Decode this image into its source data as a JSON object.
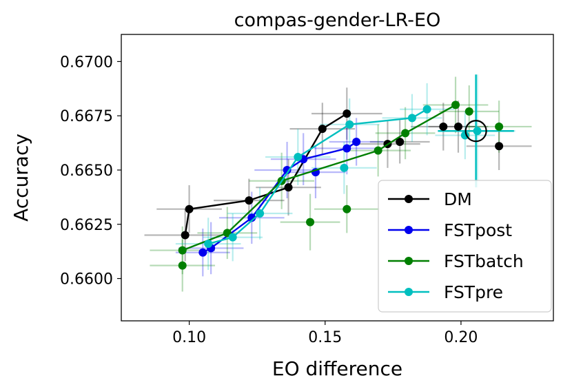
{
  "chart_data": {
    "type": "line",
    "title": "compas-gender-LR-EO",
    "xlabel": "EO difference",
    "ylabel": "Accuracy",
    "xlim": [
      0.075,
      0.234
    ],
    "ylim": [
      0.65805,
      0.67125
    ],
    "xticks": [
      0.1,
      0.15,
      0.2
    ],
    "xtick_labels": [
      "0.10",
      "0.15",
      "0.20"
    ],
    "yticks": [
      0.66,
      0.6625,
      0.665,
      0.6675,
      0.67
    ],
    "ytick_labels": [
      "0.6600",
      "0.6625",
      "0.6650",
      "0.6675",
      "0.6700"
    ],
    "legend_position": "lower-right",
    "series": [
      {
        "name": "DM",
        "color": "#000000",
        "line": [
          [
            0.0985,
            0.662
          ],
          [
            0.1,
            0.6632
          ],
          [
            0.122,
            0.6636
          ],
          [
            0.1365,
            0.6642
          ],
          [
            0.149,
            0.6669
          ],
          [
            0.158,
            0.6676
          ]
        ],
        "extra_points": [
          [
            0.173,
            0.6662
          ],
          [
            0.1775,
            0.6663
          ],
          [
            0.1935,
            0.667
          ],
          [
            0.199,
            0.667
          ],
          [
            0.214,
            0.6661
          ]
        ],
        "xerr": [
          0.015,
          0.012,
          0.013,
          0.012,
          0.012,
          0.013,
          0.012,
          0.011,
          0.012,
          0.011,
          0.012
        ],
        "yerr": [
          0.0012,
          0.0011,
          0.001,
          0.0013,
          0.0012,
          0.0012,
          0.0011,
          0.001,
          0.0011,
          0.0012,
          0.0011
        ]
      },
      {
        "name": "FSTpost",
        "color": "#0000ee",
        "line": [
          [
            0.105,
            0.6612
          ],
          [
            0.108,
            0.6614
          ],
          [
            0.123,
            0.6628
          ],
          [
            0.136,
            0.665
          ],
          [
            0.142,
            0.6655
          ],
          [
            0.158,
            0.666
          ],
          [
            0.1615,
            0.6663
          ]
        ],
        "extra_points": [
          [
            0.1465,
            0.6649
          ]
        ],
        "xerr": [
          0.01,
          0.012,
          0.012,
          0.012,
          0.012,
          0.012,
          0.01,
          0.011
        ],
        "yerr": [
          0.0011,
          0.0012,
          0.0012,
          0.0013,
          0.0012,
          0.0012,
          0.0011,
          0.0012
        ]
      },
      {
        "name": "FSTbatch",
        "color": "#007f00",
        "line": [
          [
            0.0975,
            0.6613
          ],
          [
            0.114,
            0.6621
          ],
          [
            0.134,
            0.6645
          ],
          [
            0.1695,
            0.6659
          ],
          [
            0.1795,
            0.6667
          ],
          [
            0.198,
            0.668
          ]
        ],
        "extra_points": [
          [
            0.0975,
            0.6606
          ],
          [
            0.1445,
            0.6626
          ],
          [
            0.158,
            0.6632
          ],
          [
            0.203,
            0.6677
          ],
          [
            0.214,
            0.667
          ]
        ],
        "xerr": [
          0.012,
          0.011,
          0.012,
          0.012,
          0.011,
          0.012,
          0.012,
          0.011,
          0.012,
          0.011,
          0.012
        ],
        "yerr": [
          0.0011,
          0.0012,
          0.0013,
          0.0012,
          0.0012,
          0.0013,
          0.0012,
          0.0013,
          0.0011,
          0.0012,
          0.0012
        ]
      },
      {
        "name": "FSTpre",
        "color": "#00bfbf",
        "line": [
          [
            0.107,
            0.6616
          ],
          [
            0.116,
            0.6619
          ],
          [
            0.126,
            0.663
          ],
          [
            0.14,
            0.6656
          ],
          [
            0.159,
            0.6671
          ],
          [
            0.182,
            0.6674
          ],
          [
            0.1875,
            0.6678
          ]
        ],
        "extra_points": [
          [
            0.157,
            0.6651
          ],
          [
            0.2015,
            0.6666
          ],
          [
            0.206,
            0.6668
          ]
        ],
        "xerr": [
          0.012,
          0.011,
          0.012,
          0.012,
          0.011,
          0.011,
          0.01,
          0.012,
          0.011,
          0.014
        ],
        "yerr": [
          0.0012,
          0.0011,
          0.0012,
          0.0013,
          0.0012,
          0.0011,
          0.0012,
          0.0012,
          0.0011,
          0.0026
        ]
      }
    ],
    "highlight_circle": {
      "x": 0.2055,
      "y": 0.6668
    }
  }
}
